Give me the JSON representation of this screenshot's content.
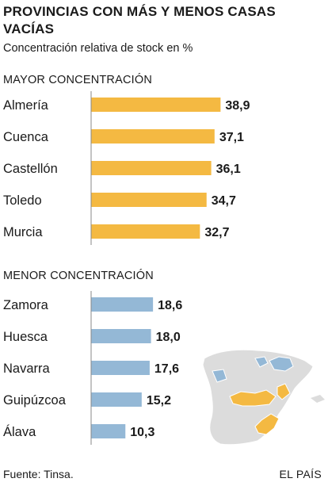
{
  "title": "PROVINCIAS CON MÁS Y MENOS CASAS VACÍAS",
  "subtitle": "Concentración relativa de stock en %",
  "source": "Fuente: Tinsa.",
  "brand": "EL PAÍS",
  "colors": {
    "high": "#f4b942",
    "low": "#94b8d6",
    "map_base": "#dcdcdc",
    "axis": "#888888"
  },
  "chart_data": [
    {
      "type": "bar",
      "orientation": "horizontal",
      "title": "MAYOR CONCENTRACIÓN",
      "categories": [
        "Almería",
        "Cuenca",
        "Castellón",
        "Toledo",
        "Murcia"
      ],
      "values": [
        38.9,
        37.1,
        36.1,
        34.7,
        32.7
      ],
      "value_labels": [
        "38,9",
        "37,1",
        "36,1",
        "34,7",
        "32,7"
      ],
      "color": "#f4b942"
    },
    {
      "type": "bar",
      "orientation": "horizontal",
      "title": "MENOR CONCENTRACIÓN",
      "categories": [
        "Zamora",
        "Huesca",
        "Navarra",
        "Guipúzcoa",
        "Álava"
      ],
      "values": [
        18.6,
        18.0,
        17.6,
        15.2,
        10.3
      ],
      "value_labels": [
        "18,6",
        "18,0",
        "17,6",
        "15,2",
        "10,3"
      ],
      "color": "#94b8d6"
    }
  ]
}
